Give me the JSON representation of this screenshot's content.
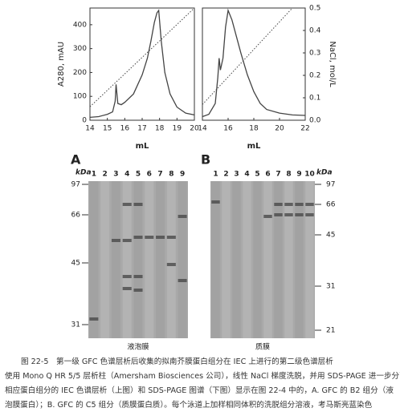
{
  "chart_data": [
    {
      "type": "line",
      "xlabel": "mL",
      "ylabel": "A280, mAU",
      "xlim": [
        14,
        20
      ],
      "xticks": [
        14,
        15,
        16,
        17,
        18,
        19,
        20
      ],
      "ylim": [
        0,
        470
      ],
      "yticks": [
        0,
        100,
        200,
        300,
        400
      ],
      "y2lim": [
        0,
        0.5
      ],
      "series": [
        {
          "color": "#444",
          "x": [
            14,
            14.5,
            15,
            15.3,
            15.45,
            15.5,
            15.6,
            15.8,
            16,
            16.5,
            17,
            17.3,
            17.5,
            17.7,
            17.85,
            17.95,
            18.1,
            18.3,
            18.6,
            19,
            19.5,
            20
          ],
          "values": [
            12,
            15,
            25,
            35,
            80,
            150,
            70,
            65,
            75,
            110,
            190,
            260,
            330,
            410,
            450,
            460,
            330,
            200,
            110,
            55,
            30,
            22
          ]
        },
        {
          "color": "#444",
          "style": "dotted",
          "axis": "y2",
          "x": [
            14,
            20
          ],
          "values": [
            0.06,
            0.5
          ]
        }
      ]
    },
    {
      "type": "line",
      "xlabel": "mL",
      "y2label": "NaCl, mol/L",
      "xlim": [
        14,
        22
      ],
      "xticks": [
        14,
        16,
        18,
        20,
        22
      ],
      "ylim": [
        0,
        470
      ],
      "y2lim": [
        0,
        0.5
      ],
      "y2ticks": [
        {
          "value": 0,
          "label": "0.0"
        },
        0.1,
        0.2,
        0.3,
        0.4,
        0.5
      ],
      "series": [
        {
          "color": "#444",
          "x": [
            14,
            14.5,
            15,
            15.2,
            15.3,
            15.4,
            15.6,
            15.8,
            16,
            16.3,
            16.6,
            17,
            17.5,
            18,
            18.5,
            19,
            20,
            21,
            22
          ],
          "values": [
            15,
            25,
            70,
            180,
            260,
            210,
            260,
            390,
            460,
            420,
            360,
            280,
            190,
            120,
            70,
            45,
            30,
            22,
            20
          ]
        },
        {
          "color": "#444",
          "style": "dotted",
          "axis": "y2",
          "x": [
            14,
            21
          ],
          "values": [
            0.07,
            0.5
          ]
        }
      ]
    }
  ],
  "gels": [
    {
      "panel": "A",
      "unit": "kDa",
      "lanes": [
        1,
        2,
        3,
        4,
        5,
        6,
        7,
        8,
        9
      ],
      "markers": [
        97,
        66,
        45,
        31
      ],
      "label": "液泡膜"
    },
    {
      "panel": "B",
      "unit": "kDa",
      "lanes": [
        1,
        2,
        3,
        4,
        5,
        6,
        7,
        8,
        9,
        10
      ],
      "markers": [
        97,
        66,
        45,
        31,
        21
      ],
      "label": "质膜"
    }
  ],
  "caption": [
    "图 22-5　第一级 GFC 色谱层析后收集的拟南芥膜蛋白组分在 IEC 上进行的第二级色谱层析",
    "使用 Mono Q HR 5/5 层析柱（Amersham Biosciences 公司），线性 NaCl 梯度洗脱，并用 SDS-PAGE 进一步分离。",
    "相应蛋白组分的 IEC 色谱层析（上图）和 SDS-PAGE 图谱（下图）显示在图 22-4 中的，A. GFC 的 B2 组分（液",
    "泡膜蛋白）；B. GFC 的 C5 组分（质膜蛋白质）。每个泳道上加样相同体积的洗脱组分溶液，考马斯亮蓝染色"
  ]
}
